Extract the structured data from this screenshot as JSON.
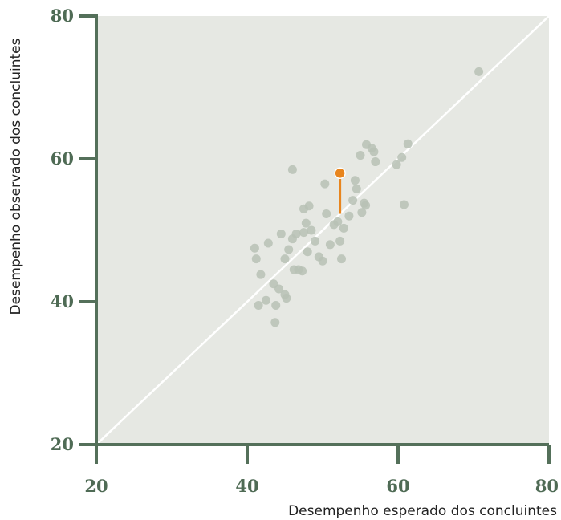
{
  "chart_data": {
    "type": "scatter",
    "title": "",
    "xlabel": "Desempenho esperado dos concluintes",
    "ylabel": "Desempenho observado dos concluintes",
    "xlim": [
      20,
      80
    ],
    "ylim": [
      20,
      80
    ],
    "x_ticks": [
      "20",
      "40",
      "60",
      "80"
    ],
    "y_ticks": [
      "20",
      "40",
      "60",
      "80"
    ],
    "grid": false,
    "reference_line": {
      "from": [
        20,
        20
      ],
      "to": [
        80,
        80
      ]
    },
    "colors": {
      "background": "#e6e8e3",
      "axis": "#54705a",
      "points": "#b7c1b5",
      "highlight": "#e8851e",
      "reference_line": "#ffffff"
    },
    "points": [
      [
        41.0,
        47.5
      ],
      [
        41.2,
        46.0
      ],
      [
        41.8,
        43.8
      ],
      [
        42.8,
        48.2
      ],
      [
        42.5,
        40.2
      ],
      [
        41.5,
        39.5
      ],
      [
        43.5,
        42.5
      ],
      [
        43.8,
        39.5
      ],
      [
        43.7,
        37.1
      ],
      [
        44.2,
        41.8
      ],
      [
        45.0,
        41.0
      ],
      [
        45.2,
        40.5
      ],
      [
        44.5,
        49.5
      ],
      [
        45.0,
        46.0
      ],
      [
        45.5,
        47.3
      ],
      [
        46.0,
        48.8
      ],
      [
        46.5,
        49.5
      ],
      [
        46.2,
        44.5
      ],
      [
        46.8,
        44.5
      ],
      [
        47.3,
        44.3
      ],
      [
        47.5,
        49.7
      ],
      [
        47.8,
        51.0
      ],
      [
        47.5,
        53.0
      ],
      [
        48.2,
        53.4
      ],
      [
        48.5,
        50.0
      ],
      [
        48.0,
        47.0
      ],
      [
        49.0,
        48.5
      ],
      [
        49.5,
        46.3
      ],
      [
        50.0,
        45.7
      ],
      [
        50.3,
        56.5
      ],
      [
        50.5,
        52.3
      ],
      [
        51.0,
        48.0
      ],
      [
        51.5,
        50.8
      ],
      [
        52.0,
        51.2
      ],
      [
        52.3,
        48.5
      ],
      [
        52.5,
        46.0
      ],
      [
        52.8,
        50.3
      ],
      [
        53.5,
        52.0
      ],
      [
        54.0,
        54.2
      ],
      [
        54.3,
        57.0
      ],
      [
        54.5,
        55.8
      ],
      [
        55.0,
        60.5
      ],
      [
        55.2,
        52.5
      ],
      [
        55.7,
        53.5
      ],
      [
        55.5,
        53.8
      ],
      [
        55.8,
        62.0
      ],
      [
        56.5,
        61.5
      ],
      [
        56.8,
        61.0
      ],
      [
        57.0,
        59.6
      ],
      [
        46.0,
        58.5
      ],
      [
        59.8,
        59.2
      ],
      [
        60.5,
        60.2
      ],
      [
        60.8,
        53.6
      ],
      [
        61.3,
        62.1
      ],
      [
        70.7,
        72.2
      ]
    ],
    "highlight_point": {
      "x": 52.3,
      "y": 58.0,
      "expected_y": 52.3
    }
  }
}
